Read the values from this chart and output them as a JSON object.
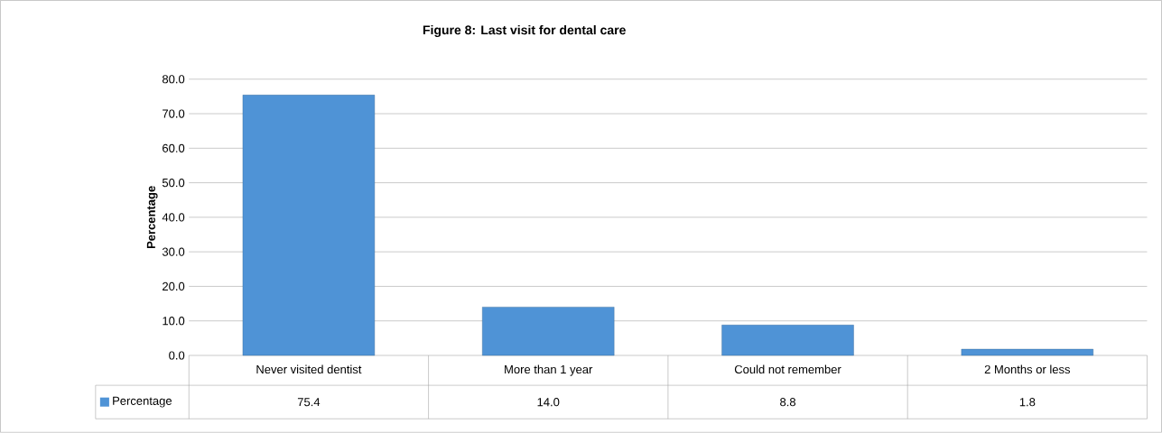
{
  "chart_data": {
    "type": "bar",
    "title": "Figure 8: Last visit for dental care",
    "ylabel": "Percentage",
    "categories": [
      "Never visited dentist",
      "More than 1 year",
      "Could not remember",
      "2 Months or less"
    ],
    "series": [
      {
        "name": "Percentage",
        "color": "#4f93d6",
        "values": [
          75.4,
          14.0,
          8.8,
          1.8
        ],
        "value_labels": [
          "75.4",
          "14.0",
          "8.8",
          "1.8"
        ]
      }
    ],
    "ylim": [
      0,
      80
    ],
    "yticks": [
      {
        "value": 0,
        "label": "0.0"
      },
      {
        "value": 10,
        "label": "10.0"
      },
      {
        "value": 20,
        "label": "20.0"
      },
      {
        "value": 30,
        "label": "30.0"
      },
      {
        "value": 40,
        "label": "40.0"
      },
      {
        "value": 50,
        "label": "50.0"
      },
      {
        "value": 60,
        "label": "60.0"
      },
      {
        "value": 70,
        "label": "70.0"
      },
      {
        "value": 80,
        "label": "80.0"
      }
    ],
    "grid": "y",
    "legend": "bottom"
  }
}
